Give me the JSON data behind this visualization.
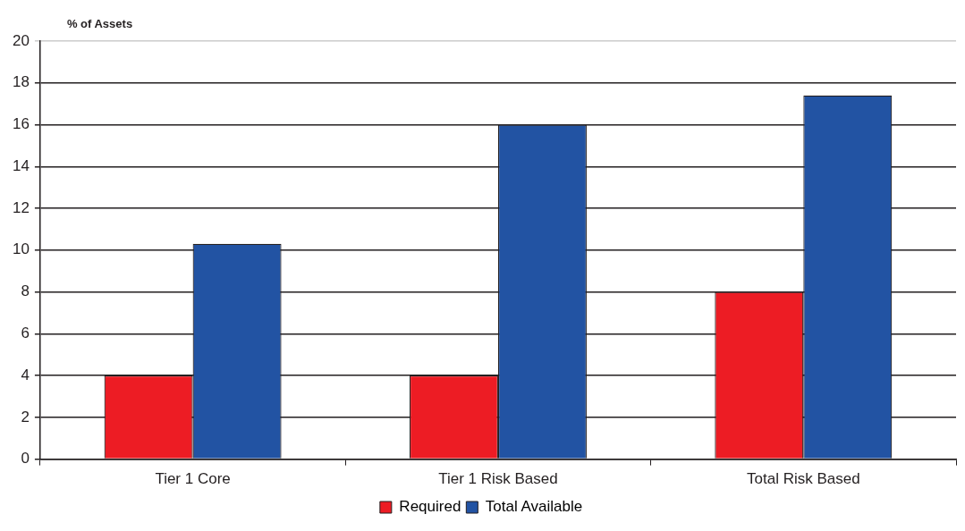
{
  "chart_data": {
    "type": "bar",
    "ylabel": "% of Assets",
    "categories": [
      "Tier 1 Core",
      "Tier 1 Risk Based",
      "Total Risk Based"
    ],
    "series": [
      {
        "name": "Required",
        "color": "#ed1c24",
        "values": [
          4,
          4,
          8
        ]
      },
      {
        "name": "Total Available",
        "color": "#2253a3",
        "values": [
          10.3,
          16.0,
          17.4
        ]
      }
    ],
    "ylim": [
      0,
      20
    ],
    "yticks": [
      0,
      2,
      4,
      6,
      8,
      10,
      12,
      14,
      16,
      18,
      20
    ],
    "grid": "y",
    "legend": "bottom"
  }
}
